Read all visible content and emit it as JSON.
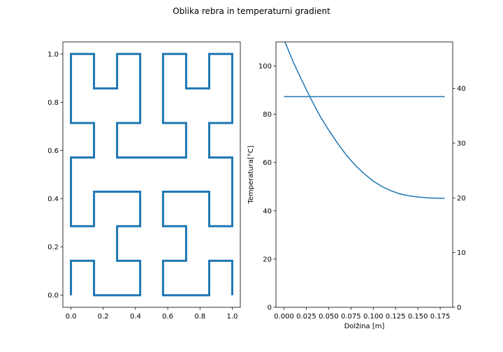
{
  "figure": {
    "suptitle": "Oblika rebra in temperaturni gradient"
  },
  "chart_data": [
    {
      "type": "line",
      "title": "",
      "xlabel": "",
      "ylabel": "",
      "xlim": [
        -0.05,
        1.05
      ],
      "ylim": [
        -0.05,
        1.05
      ],
      "xticks": [
        0.0,
        0.2,
        0.4,
        0.6,
        0.8,
        1.0
      ],
      "xtick_labels": [
        "0.0",
        "0.2",
        "0.4",
        "0.6",
        "0.8",
        "1.0"
      ],
      "yticks": [
        0.0,
        0.2,
        0.4,
        0.6,
        0.8,
        1.0
      ],
      "ytick_labels": [
        "0.0",
        "0.2",
        "0.4",
        "0.6",
        "0.8",
        "1.0"
      ],
      "grid": false,
      "color": "#1f77b4",
      "series": [
        {
          "points": [
            [
              0.0,
              0.0
            ],
            [
              0.0,
              0.143
            ],
            [
              0.143,
              0.143
            ],
            [
              0.143,
              0.0
            ],
            [
              0.286,
              0.0
            ],
            [
              0.429,
              0.0
            ],
            [
              0.429,
              0.143
            ],
            [
              0.286,
              0.143
            ],
            [
              0.286,
              0.286
            ],
            [
              0.429,
              0.286
            ],
            [
              0.429,
              0.429
            ],
            [
              0.286,
              0.429
            ],
            [
              0.143,
              0.429
            ],
            [
              0.143,
              0.286
            ],
            [
              0.0,
              0.286
            ],
            [
              0.0,
              0.429
            ],
            [
              0.0,
              0.571
            ],
            [
              0.143,
              0.571
            ],
            [
              0.143,
              0.714
            ],
            [
              0.0,
              0.714
            ],
            [
              0.0,
              0.857
            ],
            [
              0.0,
              1.0
            ],
            [
              0.143,
              1.0
            ],
            [
              0.143,
              0.857
            ],
            [
              0.286,
              0.857
            ],
            [
              0.286,
              1.0
            ],
            [
              0.429,
              1.0
            ],
            [
              0.429,
              0.857
            ],
            [
              0.429,
              0.714
            ],
            [
              0.286,
              0.714
            ],
            [
              0.286,
              0.571
            ],
            [
              0.429,
              0.571
            ],
            [
              0.571,
              0.571
            ],
            [
              0.714,
              0.571
            ],
            [
              0.714,
              0.714
            ],
            [
              0.571,
              0.714
            ],
            [
              0.571,
              0.857
            ],
            [
              0.571,
              1.0
            ],
            [
              0.714,
              1.0
            ],
            [
              0.714,
              0.857
            ],
            [
              0.857,
              0.857
            ],
            [
              0.857,
              1.0
            ],
            [
              1.0,
              1.0
            ],
            [
              1.0,
              0.857
            ],
            [
              1.0,
              0.714
            ],
            [
              0.857,
              0.714
            ],
            [
              0.857,
              0.571
            ],
            [
              1.0,
              0.571
            ],
            [
              1.0,
              0.429
            ],
            [
              1.0,
              0.286
            ],
            [
              0.857,
              0.286
            ],
            [
              0.857,
              0.429
            ],
            [
              0.714,
              0.429
            ],
            [
              0.571,
              0.429
            ],
            [
              0.571,
              0.286
            ],
            [
              0.714,
              0.286
            ],
            [
              0.714,
              0.143
            ],
            [
              0.571,
              0.143
            ],
            [
              0.571,
              0.0
            ],
            [
              0.714,
              0.0
            ],
            [
              0.857,
              0.0
            ],
            [
              0.857,
              0.143
            ],
            [
              1.0,
              0.143
            ],
            [
              1.0,
              0.0
            ]
          ]
        }
      ]
    },
    {
      "type": "line",
      "title": "",
      "xlabel": "Dolžina [m]",
      "ylabel": "Temperatura[°C]",
      "xlim": [
        -0.009,
        0.189
      ],
      "ylim": [
        0,
        110
      ],
      "xticks": [
        0.0,
        0.025,
        0.05,
        0.075,
        0.1,
        0.125,
        0.15,
        0.175
      ],
      "xtick_labels": [
        "0.000",
        "0.025",
        "0.050",
        "0.075",
        "0.100",
        "0.125",
        "0.150",
        "0.175"
      ],
      "yticks": [
        0,
        20,
        40,
        60,
        80,
        100
      ],
      "ytick_labels": [
        "0",
        "20",
        "40",
        "60",
        "80",
        "100"
      ],
      "secondary_y": {
        "ylim": [
          0,
          48.5
        ],
        "yticks": [
          0,
          10,
          20,
          30,
          40
        ],
        "ytick_labels": [
          "0",
          "10",
          "20",
          "30",
          "40"
        ]
      },
      "grid": false,
      "color": "#1f77b4",
      "series": [
        {
          "axis": "left",
          "x": [
            0.0,
            0.01,
            0.02,
            0.03,
            0.04,
            0.05,
            0.06,
            0.07,
            0.08,
            0.09,
            0.1,
            0.11,
            0.12,
            0.13,
            0.14,
            0.15,
            0.16,
            0.17,
            0.18
          ],
          "y": [
            111.0,
            102.0,
            94.0,
            86.5,
            79.5,
            73.5,
            68.0,
            63.0,
            58.8,
            55.3,
            52.3,
            50.0,
            48.3,
            47.0,
            46.2,
            45.7,
            45.4,
            45.2,
            45.2
          ]
        },
        {
          "axis": "right",
          "x": [
            0.0,
            0.18
          ],
          "y": [
            38.5,
            38.5
          ]
        }
      ]
    }
  ]
}
